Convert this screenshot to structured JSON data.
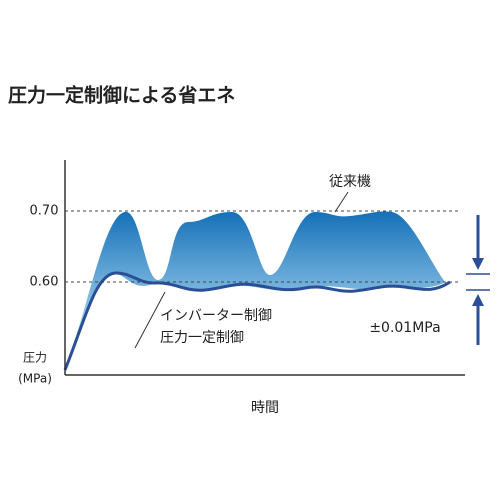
{
  "title": "圧力一定制御による省エネ",
  "axis": {
    "y_ticks": [
      "0.70",
      "0.60"
    ],
    "y_label_1": "圧力",
    "y_label_2": "(MPa)",
    "x_label": "時間"
  },
  "labels": {
    "conventional": "従来機",
    "inverter_1": "インバーター制御",
    "inverter_2": "圧力一定制御",
    "tolerance": "±0.01MPa"
  }
}
